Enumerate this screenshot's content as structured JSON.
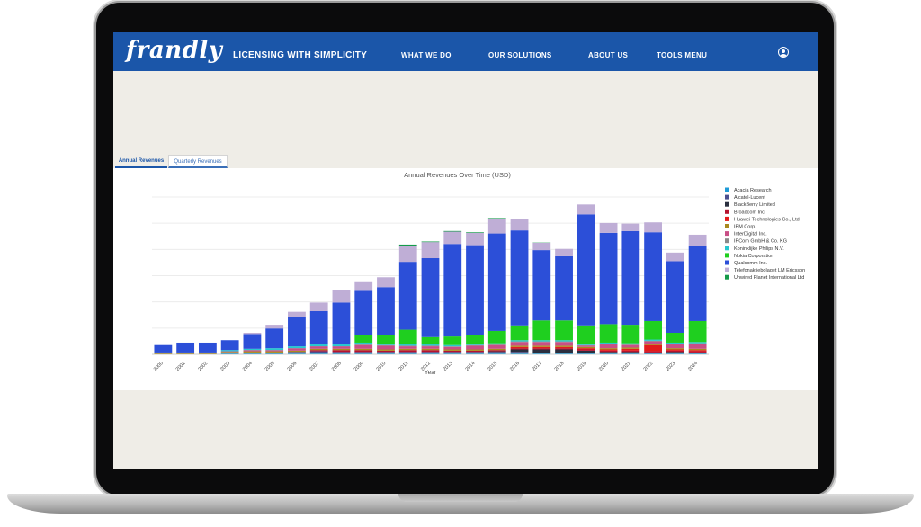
{
  "nav": {
    "logo": "frandly",
    "tagline": "LICENSING WITH SIMPLICITY",
    "links": [
      "WHAT WE DO",
      "OUR SOLUTIONS",
      "ABOUT US",
      "TOOLS MENU"
    ],
    "user_icon": "user-circle-icon"
  },
  "tabs": [
    {
      "label": "Annual Revenues",
      "active": true
    },
    {
      "label": "Quarterly Revenues",
      "active": false
    }
  ],
  "chart_data": {
    "type": "bar",
    "stacked": true,
    "title": "Annual Revenues Over Time (USD)",
    "xlabel": "Year",
    "ylabel": "",
    "grid": true,
    "legend_position": "right",
    "categories": [
      "2000",
      "2001",
      "2002",
      "2003",
      "2004",
      "2005",
      "2006",
      "2007",
      "2008",
      "2009",
      "2010",
      "2011",
      "2012",
      "2013",
      "2014",
      "2015",
      "2016",
      "2017",
      "2018",
      "2019",
      "2020",
      "2021",
      "2022",
      "2023",
      "2024"
    ],
    "series": [
      {
        "name": "Acacia Research",
        "color": "#1f9bd7",
        "values": [
          0,
          0,
          0,
          0.1,
          0.15,
          0.15,
          0.1,
          0.1,
          0.1,
          0.1,
          0.1,
          0.1,
          0.1,
          0.1,
          0.1,
          0.1,
          0.1,
          0.1,
          0.1,
          0.1,
          0.1,
          0.1,
          0.1,
          0.1,
          0.1
        ]
      },
      {
        "name": "Alcatel-Lucent",
        "color": "#4b4f8f",
        "values": [
          0,
          0,
          0,
          0,
          0,
          0,
          0.1,
          0.15,
          0.1,
          0.1,
          0.1,
          0.1,
          0.1,
          0.1,
          0.1,
          0.1,
          0.1,
          0,
          0,
          0,
          0,
          0,
          0,
          0,
          0
        ]
      },
      {
        "name": "BlackBerry Limited",
        "color": "#2a2f3f",
        "values": [
          0,
          0,
          0,
          0,
          0,
          0,
          0,
          0,
          0,
          0,
          0,
          0,
          0,
          0,
          0,
          0.05,
          0.2,
          0.3,
          0.3,
          0.2,
          0.1,
          0.1,
          0.05,
          0.1,
          0.05
        ]
      },
      {
        "name": "Broadcom Inc.",
        "color": "#b5132f",
        "values": [
          0,
          0,
          0,
          0,
          0,
          0,
          0,
          0.1,
          0.15,
          0.15,
          0.1,
          0.15,
          0.15,
          0.1,
          0.1,
          0.1,
          0.1,
          0.1,
          0.1,
          0.1,
          0.1,
          0.1,
          0.1,
          0.1,
          0.1
        ]
      },
      {
        "name": "Huawei Technologies Co., Ltd.",
        "color": "#e31b1b",
        "values": [
          0,
          0,
          0,
          0,
          0,
          0,
          0,
          0,
          0,
          0,
          0,
          0,
          0,
          0,
          0,
          0,
          0.1,
          0.1,
          0.1,
          0.1,
          0.1,
          0.15,
          0.5,
          0.1,
          0.1
        ]
      },
      {
        "name": "IBM Corp.",
        "color": "#a9891f",
        "values": [
          0.15,
          0.15,
          0.15,
          0.1,
          0.1,
          0.1,
          0.1,
          0.1,
          0.1,
          0.1,
          0.1,
          0.1,
          0.1,
          0.1,
          0.1,
          0.1,
          0.1,
          0.1,
          0.1,
          0.1,
          0.1,
          0.1,
          0.1,
          0.1,
          0.1
        ]
      },
      {
        "name": "InterDigital Inc.",
        "color": "#c94f86",
        "values": [
          0,
          0,
          0,
          0.05,
          0.1,
          0.1,
          0.2,
          0.2,
          0.2,
          0.3,
          0.3,
          0.2,
          0.2,
          0.2,
          0.3,
          0.3,
          0.3,
          0.3,
          0.3,
          0.1,
          0.3,
          0.2,
          0.2,
          0.3,
          0.4
        ]
      },
      {
        "name": "IPCom GmbH & Co. KG",
        "color": "#8a8a8a",
        "values": [
          0,
          0,
          0,
          0,
          0,
          0,
          0,
          0,
          0,
          0.05,
          0.05,
          0.05,
          0.05,
          0.05,
          0.05,
          0.05,
          0.05,
          0.05,
          0.05,
          0.05,
          0.05,
          0.05,
          0.05,
          0.05,
          0.05
        ]
      },
      {
        "name": "Koninklijke Philips N.V.",
        "color": "#27c7cf",
        "values": [
          0,
          0,
          0,
          0.1,
          0.1,
          0.15,
          0.15,
          0.15,
          0.15,
          0.15,
          0.1,
          0.1,
          0.1,
          0.1,
          0.1,
          0.1,
          0.1,
          0.1,
          0.1,
          0.1,
          0.1,
          0.1,
          0.1,
          0.1,
          0.1
        ]
      },
      {
        "name": "Nokia Corporation",
        "color": "#1fcf1f",
        "values": [
          0,
          0,
          0,
          0,
          0,
          0,
          0,
          0,
          0,
          0.6,
          0.7,
          1.2,
          0.6,
          0.7,
          0.7,
          1.0,
          1.2,
          1.6,
          1.6,
          1.5,
          1.5,
          1.5,
          1.5,
          0.8,
          1.7
        ]
      },
      {
        "name": "Qualcomm Inc.",
        "color": "#2c4fd8",
        "values": [
          0.6,
          0.8,
          0.8,
          0.8,
          1.2,
          1.6,
          2.4,
          2.7,
          3.4,
          3.6,
          3.9,
          5.5,
          6.4,
          7.5,
          7.3,
          7.9,
          7.7,
          5.7,
          5.2,
          9.0,
          7.4,
          7.6,
          7.2,
          5.8,
          6.1
        ]
      },
      {
        "name": "Telefonaktiebolaget LM Ericsson",
        "color": "#bfaed6",
        "values": [
          0,
          0,
          0,
          0,
          0.1,
          0.3,
          0.4,
          0.7,
          1.0,
          0.7,
          0.8,
          1.3,
          1.3,
          1.0,
          1.0,
          1.2,
          0.9,
          0.6,
          0.6,
          0.8,
          0.8,
          0.6,
          0.8,
          0.7,
          0.9
        ]
      },
      {
        "name": "Unwired Planet International Ltd",
        "color": "#159a4a",
        "values": [
          0,
          0,
          0,
          0,
          0,
          0,
          0,
          0,
          0,
          0,
          0,
          0.1,
          0.05,
          0.05,
          0.05,
          0.05,
          0.05,
          0.02,
          0,
          0,
          0,
          0,
          0,
          0,
          0
        ]
      }
    ]
  }
}
